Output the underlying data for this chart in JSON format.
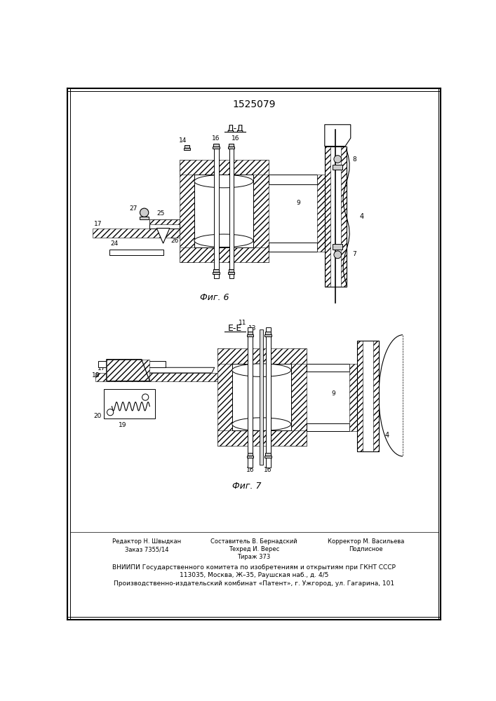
{
  "title": "1525079",
  "fig6_label": "Фиг. 6",
  "fig7_label": "Фиг. 7",
  "section_dd": "Д-Д",
  "section_ee": "E-E",
  "bg_color": "#ffffff",
  "line_color": "#000000"
}
